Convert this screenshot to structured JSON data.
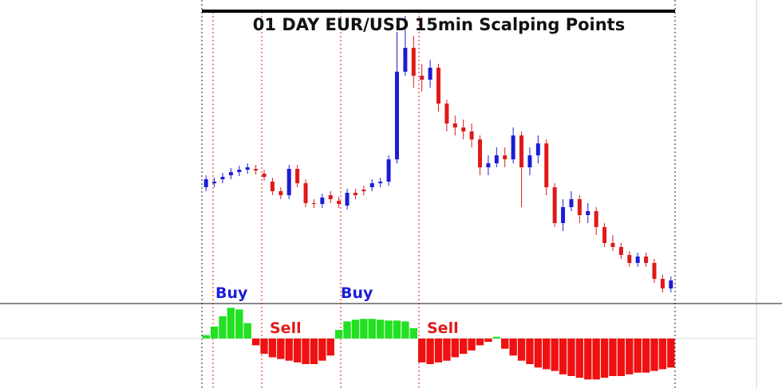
{
  "chart_data": [
    {
      "type": "candlestick",
      "title": "01 DAY EUR/USD 15min Scalping Points",
      "open": [
        1.1183,
        1.1184,
        1.1185,
        1.1186,
        1.11868,
        1.11874,
        1.11876,
        1.11864,
        1.11844,
        1.1182,
        1.1181,
        1.11876,
        1.1184,
        1.1179,
        1.11788,
        1.1181,
        1.11796,
        1.11784,
        1.11816,
        1.11824,
        1.1183,
        1.1184,
        1.11844,
        1.119,
        1.1212,
        1.1218,
        1.1211,
        1.121,
        1.1213,
        1.1204,
        1.1199,
        1.1198,
        1.1197,
        1.1195,
        1.1188,
        1.1189,
        1.1191,
        1.119,
        1.1196,
        1.1188,
        1.1191,
        1.1194,
        1.1183,
        1.1174,
        1.1178,
        1.118,
        1.1176,
        1.1177,
        1.1173,
        1.1169,
        1.1168,
        1.1166,
        1.1164,
        1.11656,
        1.1164,
        1.116,
        1.11576
      ],
      "high": [
        1.1186,
        1.11854,
        1.11866,
        1.11878,
        1.11884,
        1.1189,
        1.11886,
        1.11874,
        1.11854,
        1.1183,
        1.11886,
        1.11886,
        1.1185,
        1.118,
        1.11814,
        1.1182,
        1.11806,
        1.11826,
        1.11826,
        1.11834,
        1.1185,
        1.11854,
        1.1191,
        1.1222,
        1.1226,
        1.1221,
        1.1214,
        1.1215,
        1.1214,
        1.1205,
        1.1201,
        1.12,
        1.1199,
        1.1196,
        1.1191,
        1.1193,
        1.1193,
        1.1198,
        1.1197,
        1.1193,
        1.1196,
        1.1195,
        1.1184,
        1.118,
        1.1182,
        1.1181,
        1.1179,
        1.1178,
        1.1174,
        1.1171,
        1.1169,
        1.1167,
        1.11666,
        1.11666,
        1.1165,
        1.1161,
        1.11606
      ],
      "low": [
        1.1182,
        1.1183,
        1.1184,
        1.1185,
        1.11858,
        1.11864,
        1.11862,
        1.11846,
        1.1181,
        1.118,
        1.118,
        1.1183,
        1.1178,
        1.11778,
        1.11778,
        1.1179,
        1.11778,
        1.11774,
        1.118,
        1.1181,
        1.1182,
        1.1183,
        1.11834,
        1.1189,
        1.1211,
        1.1208,
        1.1207,
        1.1208,
        1.1202,
        1.1197,
        1.1196,
        1.1195,
        1.1193,
        1.1186,
        1.1186,
        1.1188,
        1.1188,
        1.1189,
        1.1178,
        1.1186,
        1.1189,
        1.1181,
        1.1173,
        1.1172,
        1.1177,
        1.1174,
        1.1174,
        1.1171,
        1.1168,
        1.1167,
        1.1165,
        1.1163,
        1.1163,
        1.1163,
        1.1159,
        1.11566,
        1.11566
      ],
      "close": [
        1.1185,
        1.11844,
        1.11856,
        1.11868,
        1.11874,
        1.1188,
        1.11872,
        1.11856,
        1.1182,
        1.1181,
        1.11876,
        1.1184,
        1.1179,
        1.11788,
        1.11804,
        1.118,
        1.11788,
        1.11816,
        1.1181,
        1.1182,
        1.1184,
        1.11844,
        1.119,
        1.1212,
        1.1218,
        1.1211,
        1.121,
        1.1213,
        1.1204,
        1.1199,
        1.1198,
        1.1197,
        1.1195,
        1.1188,
        1.1189,
        1.1191,
        1.119,
        1.1196,
        1.1188,
        1.1191,
        1.1194,
        1.1183,
        1.1174,
        1.1178,
        1.118,
        1.1176,
        1.1177,
        1.1173,
        1.1169,
        1.1168,
        1.1166,
        1.1164,
        1.11656,
        1.1164,
        1.116,
        1.11576,
        1.11596
      ],
      "up_color": "#1c1cd6",
      "down_color": "#e01919",
      "ylim": [
        1.1154,
        1.123
      ],
      "annotations": [
        "Buy",
        "Sell",
        "Buy",
        "Sell"
      ]
    },
    {
      "type": "bar",
      "values": [
        0.2,
        0.7,
        1.3,
        1.8,
        1.7,
        0.9,
        -0.4,
        -0.9,
        -1.1,
        -1.2,
        -1.3,
        -1.4,
        -1.5,
        -1.5,
        -1.3,
        -1.0,
        0.5,
        1.0,
        1.1,
        1.15,
        1.15,
        1.1,
        1.05,
        1.05,
        1.0,
        0.6,
        -1.4,
        -1.5,
        -1.4,
        -1.3,
        -1.1,
        -0.9,
        -0.7,
        -0.4,
        -0.2,
        0.1,
        -0.6,
        -1.0,
        -1.3,
        -1.5,
        -1.7,
        -1.8,
        -1.9,
        -2.1,
        -2.2,
        -2.3,
        -2.4,
        -2.4,
        -2.3,
        -2.2,
        -2.2,
        -2.1,
        -2.0,
        -2.0,
        -1.9,
        -1.8,
        -1.7
      ],
      "positive_color": "#22e022",
      "negative_color": "#ee1111",
      "ylim": [
        -2.9,
        2
      ]
    }
  ]
}
